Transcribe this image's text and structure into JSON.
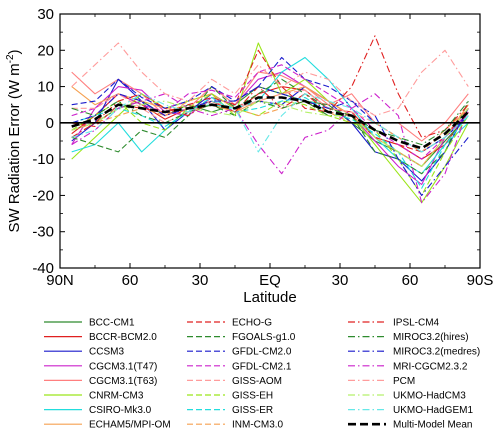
{
  "chart_data": {
    "type": "line",
    "title": "",
    "xlabel": "Latitude",
    "ylabel": "SW Radiation Error (W m",
    "ylabel_superscript": "-2",
    "ylabel_close": ")",
    "x_range": [
      90,
      -90
    ],
    "ylim": [
      -40,
      30
    ],
    "y_ticks": [
      -40,
      -30,
      -20,
      -10,
      0,
      10,
      20,
      30
    ],
    "y_tick_labels": [
      "-40",
      "-30",
      "-20",
      "-10",
      "0",
      "10",
      "20",
      "30"
    ],
    "x_ticks": [
      90,
      60,
      30,
      0,
      -30,
      -60,
      -90
    ],
    "x_tick_labels": [
      "90N",
      "60",
      "30",
      "EQ",
      "30",
      "60",
      "90S"
    ],
    "x": [
      85,
      75,
      65,
      55,
      45,
      35,
      25,
      15,
      5,
      -5,
      -15,
      -25,
      -35,
      -45,
      -55,
      -65,
      -75,
      -85
    ],
    "legend_position": "bottom",
    "series": [
      {
        "name": "BCC-CM1",
        "color": "#2e8b2e",
        "dash": "solid",
        "values": [
          -2,
          0,
          4,
          6,
          2,
          5,
          3,
          5,
          10,
          8,
          6,
          5,
          0,
          -5,
          -8,
          -12,
          -5,
          2
        ]
      },
      {
        "name": "BCCR-BCM2.0",
        "color": "#e02020",
        "dash": "solid",
        "values": [
          -3,
          2,
          8,
          5,
          1,
          4,
          6,
          3,
          8,
          10,
          9,
          4,
          3,
          -4,
          -6,
          -10,
          -6,
          3
        ]
      },
      {
        "name": "CCSM3",
        "color": "#1a1acc",
        "dash": "solid",
        "values": [
          -5,
          0,
          12,
          6,
          -2,
          3,
          8,
          4,
          6,
          5,
          10,
          6,
          0,
          -8,
          -10,
          -16,
          -8,
          4
        ]
      },
      {
        "name": "CGCM3.1(T47)",
        "color": "#cc22cc",
        "dash": "solid",
        "values": [
          -6,
          4,
          10,
          9,
          3,
          2,
          7,
          5,
          12,
          14,
          10,
          6,
          2,
          -5,
          -12,
          -17,
          -4,
          2
        ]
      },
      {
        "name": "CGCM3.1(T63)",
        "color": "#ff7f7f",
        "dash": "solid",
        "values": [
          14,
          8,
          12,
          8,
          2,
          4,
          10,
          5,
          14,
          13,
          10,
          5,
          8,
          0,
          0,
          -5,
          0,
          8
        ]
      },
      {
        "name": "CNRM-CM3",
        "color": "#9be51a",
        "dash": "solid",
        "values": [
          -10,
          -4,
          2,
          8,
          4,
          6,
          8,
          2,
          22,
          8,
          12,
          6,
          2,
          -6,
          -14,
          -22,
          -12,
          0
        ]
      },
      {
        "name": "CSIRO-Mk3.0",
        "color": "#22dddd",
        "dash": "solid",
        "values": [
          -8,
          -6,
          0,
          -8,
          -2,
          4,
          5,
          4,
          6,
          14,
          18,
          12,
          4,
          -4,
          -10,
          -14,
          -6,
          0
        ]
      },
      {
        "name": "ECHAM5/MPI-OM",
        "color": "#f5a050",
        "dash": "solid",
        "values": [
          10,
          5,
          8,
          6,
          4,
          3,
          5,
          3,
          6,
          8,
          10,
          6,
          2,
          -4,
          -8,
          -12,
          -4,
          5
        ]
      },
      {
        "name": "ECHO-G",
        "color": "#e02020",
        "dash": "dash",
        "values": [
          0,
          -1,
          5,
          4,
          3,
          5,
          7,
          5,
          20,
          10,
          4,
          3,
          2,
          -4,
          -6,
          -8,
          -4,
          4
        ]
      },
      {
        "name": "FGOALS-g1.0",
        "color": "#2e8b2e",
        "dash": "dash",
        "values": [
          -4,
          -6,
          -8,
          -2,
          -4,
          2,
          10,
          4,
          8,
          12,
          8,
          4,
          2,
          -8,
          -10,
          -14,
          -8,
          6
        ]
      },
      {
        "name": "GFDL-CM2.0",
        "color": "#1a1acc",
        "dash": "dash",
        "values": [
          5,
          6,
          12,
          7,
          4,
          6,
          10,
          6,
          10,
          18,
          12,
          10,
          6,
          0,
          -4,
          -8,
          -4,
          2
        ]
      },
      {
        "name": "GFDL-CM2.1",
        "color": "#cc22cc",
        "dash": "dash",
        "values": [
          2,
          4,
          8,
          5,
          3,
          8,
          9,
          7,
          14,
          16,
          12,
          8,
          4,
          -2,
          -6,
          -10,
          -4,
          3
        ]
      },
      {
        "name": "GISS-AOM",
        "color": "#ff9c9c",
        "dash": "dash",
        "values": [
          4,
          4,
          8,
          4,
          0,
          3,
          6,
          4,
          6,
          8,
          9,
          4,
          3,
          0,
          -4,
          -8,
          -2,
          4
        ]
      },
      {
        "name": "GISS-EH",
        "color": "#9be51a",
        "dash": "dash",
        "values": [
          -2,
          2,
          6,
          0,
          -2,
          4,
          8,
          4,
          2,
          6,
          5,
          2,
          0,
          -2,
          -10,
          -20,
          -8,
          2
        ]
      },
      {
        "name": "GISS-ER",
        "color": "#22dddd",
        "dash": "dash",
        "values": [
          0,
          2,
          4,
          2,
          -1,
          3,
          7,
          3,
          4,
          6,
          7,
          3,
          1,
          -3,
          -8,
          -18,
          -6,
          2
        ]
      },
      {
        "name": "INM-CM3.0",
        "color": "#f5a050",
        "dash": "dash",
        "values": [
          -2,
          0,
          2,
          4,
          2,
          6,
          8,
          4,
          2,
          4,
          6,
          3,
          0,
          0,
          -4,
          -8,
          -2,
          4
        ]
      },
      {
        "name": "IPSL-CM4",
        "color": "#e02020",
        "dash": "dashdot",
        "values": [
          -4,
          0,
          6,
          8,
          4,
          2,
          6,
          3,
          10,
          4,
          8,
          3,
          10,
          24,
          8,
          -4,
          -2,
          5
        ]
      },
      {
        "name": "MIROC3.2(hires)",
        "color": "#2e8b2e",
        "dash": "dashdot",
        "values": [
          4,
          2,
          6,
          2,
          0,
          3,
          5,
          2,
          6,
          4,
          6,
          2,
          2,
          -2,
          -4,
          -6,
          -2,
          6
        ]
      },
      {
        "name": "MIROC3.2(medres)",
        "color": "#1a1acc",
        "dash": "dashdot",
        "values": [
          0,
          2,
          8,
          6,
          2,
          4,
          6,
          6,
          10,
          8,
          6,
          4,
          6,
          2,
          -10,
          -20,
          -12,
          -4
        ]
      },
      {
        "name": "MRI-CGCM2.3.2",
        "color": "#cc22cc",
        "dash": "dashdot",
        "values": [
          -6,
          -2,
          4,
          6,
          8,
          4,
          2,
          4,
          -6,
          -14,
          -4,
          -2,
          4,
          8,
          2,
          -22,
          -14,
          4
        ]
      },
      {
        "name": "PCM",
        "color": "#ff9c9c",
        "dash": "dashdot",
        "values": [
          10,
          16,
          22,
          14,
          8,
          6,
          12,
          8,
          16,
          10,
          14,
          12,
          6,
          2,
          4,
          14,
          20,
          10
        ]
      },
      {
        "name": "UKMO-HadCM3",
        "color": "#b5f06a",
        "dash": "dashdot",
        "values": [
          -2,
          0,
          4,
          5,
          6,
          4,
          3,
          2,
          6,
          5,
          3,
          2,
          2,
          -4,
          -8,
          -12,
          -4,
          4
        ]
      },
      {
        "name": "UKMO-HadGEM1",
        "color": "#66e8e8",
        "dash": "dashdot",
        "values": [
          -4,
          -2,
          4,
          8,
          5,
          3,
          6,
          4,
          -8,
          2,
          8,
          6,
          4,
          0,
          -4,
          -8,
          -4,
          2
        ]
      },
      {
        "name": "Multi-Model Mean",
        "color": "#000000",
        "dash": "dashbold",
        "values": [
          -1,
          1,
          5,
          4,
          3,
          4,
          5,
          4,
          7,
          7,
          6,
          3,
          2,
          -2,
          -5,
          -7,
          -3,
          3
        ]
      }
    ]
  }
}
